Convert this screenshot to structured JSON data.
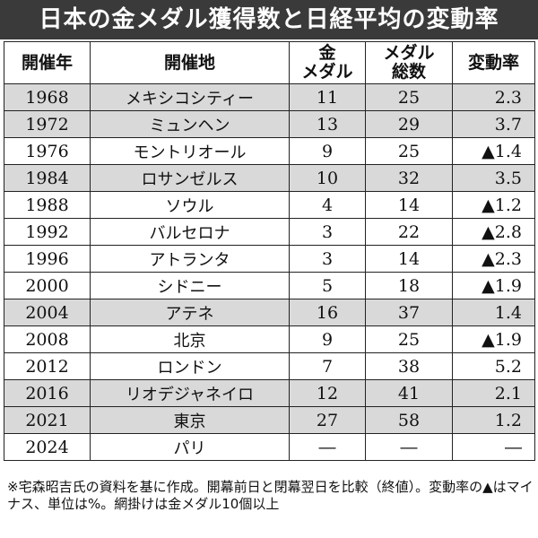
{
  "title": "日本の金メダル獲得数と日経平均の変動率",
  "columns": {
    "year": "開催年",
    "venue": "開催地",
    "gold": "金\nメダル",
    "total": "メダル\n総数",
    "change": "変動率"
  },
  "rows": [
    {
      "year": "1968",
      "venue": "メキシコシティー",
      "gold": "11",
      "total": "25",
      "change": "2.3",
      "shaded": true
    },
    {
      "year": "1972",
      "venue": "ミュンヘン",
      "gold": "13",
      "total": "29",
      "change": "3.7",
      "shaded": true
    },
    {
      "year": "1976",
      "venue": "モントリオール",
      "gold": "9",
      "total": "25",
      "change": "▲1.4",
      "shaded": false
    },
    {
      "year": "1984",
      "venue": "ロサンゼルス",
      "gold": "10",
      "total": "32",
      "change": "3.5",
      "shaded": true
    },
    {
      "year": "1988",
      "venue": "ソウル",
      "gold": "4",
      "total": "14",
      "change": "▲1.2",
      "shaded": false
    },
    {
      "year": "1992",
      "venue": "バルセロナ",
      "gold": "3",
      "total": "22",
      "change": "▲2.8",
      "shaded": false
    },
    {
      "year": "1996",
      "venue": "アトランタ",
      "gold": "3",
      "total": "14",
      "change": "▲2.3",
      "shaded": false
    },
    {
      "year": "2000",
      "venue": "シドニー",
      "gold": "5",
      "total": "18",
      "change": "▲1.9",
      "shaded": false
    },
    {
      "year": "2004",
      "venue": "アテネ",
      "gold": "16",
      "total": "37",
      "change": "1.4",
      "shaded": true
    },
    {
      "year": "2008",
      "venue": "北京",
      "gold": "9",
      "total": "25",
      "change": "▲1.9",
      "shaded": false
    },
    {
      "year": "2012",
      "venue": "ロンドン",
      "gold": "7",
      "total": "38",
      "change": "5.2",
      "shaded": false
    },
    {
      "year": "2016",
      "venue": "リオデジャネイロ",
      "gold": "12",
      "total": "41",
      "change": "2.1",
      "shaded": true
    },
    {
      "year": "2021",
      "venue": "東京",
      "gold": "27",
      "total": "58",
      "change": "1.2",
      "shaded": true
    },
    {
      "year": "2024",
      "venue": "パリ",
      "gold": "―",
      "total": "―",
      "change": "―",
      "shaded": false
    }
  ],
  "footnote": "※宅森昭吉氏の資料を基に作成。開幕前日と閉幕翌日を比較（終値）。変動率の▲はマイナス、単位は%。網掛けは金メダル10個以上",
  "colors": {
    "title_bg": "#3a3a3a",
    "shade": "#d9d9d9"
  }
}
